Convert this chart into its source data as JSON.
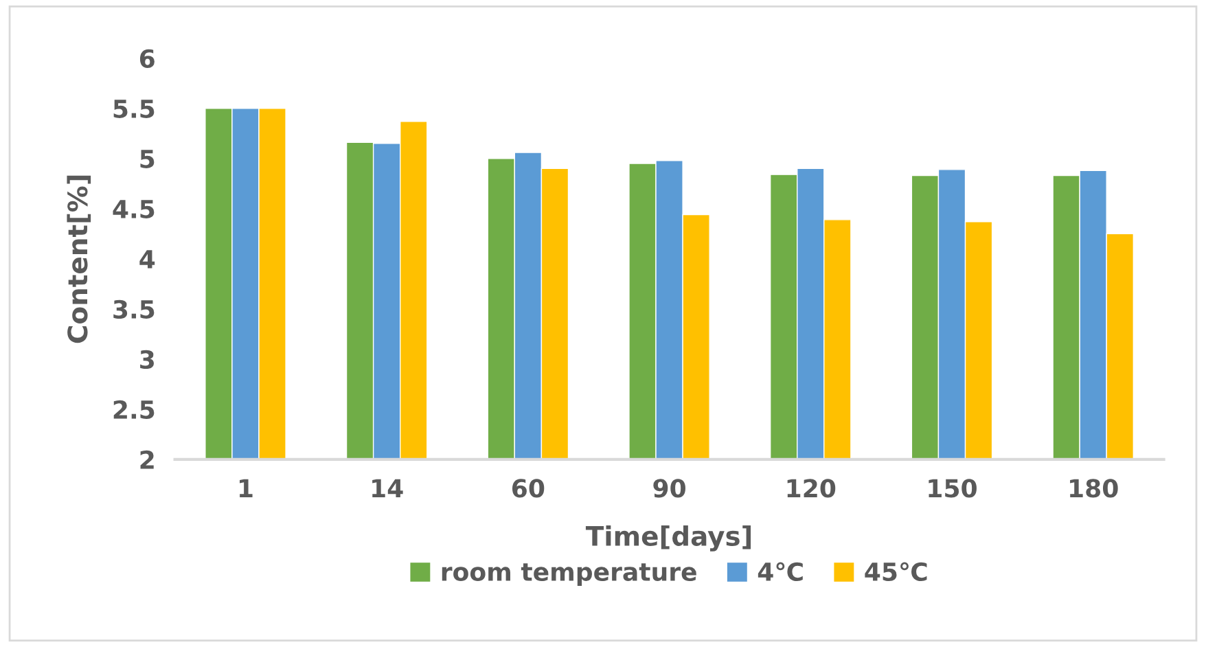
{
  "chart_data": {
    "type": "bar",
    "categories": [
      "1",
      "14",
      "60",
      "90",
      "120",
      "150",
      "180"
    ],
    "series": [
      {
        "name": "room temperature",
        "color": "#70ad47",
        "values": [
          5.5,
          5.16,
          5.0,
          4.95,
          4.84,
          4.83,
          4.83
        ]
      },
      {
        "name": "4℃",
        "color": "#5b9bd5",
        "values": [
          5.5,
          5.15,
          5.06,
          4.98,
          4.9,
          4.89,
          4.88
        ]
      },
      {
        "name": "45℃",
        "color": "#ffc000",
        "values": [
          5.5,
          5.37,
          4.9,
          4.44,
          4.39,
          4.37,
          4.25
        ]
      }
    ],
    "xlabel": "Time[days]",
    "ylabel": "Content[%]",
    "ylim": [
      2,
      6
    ],
    "yticks": [
      2,
      2.5,
      3,
      3.5,
      4,
      4.5,
      5,
      5.5,
      6
    ],
    "grid": false,
    "legend": "bottom"
  }
}
